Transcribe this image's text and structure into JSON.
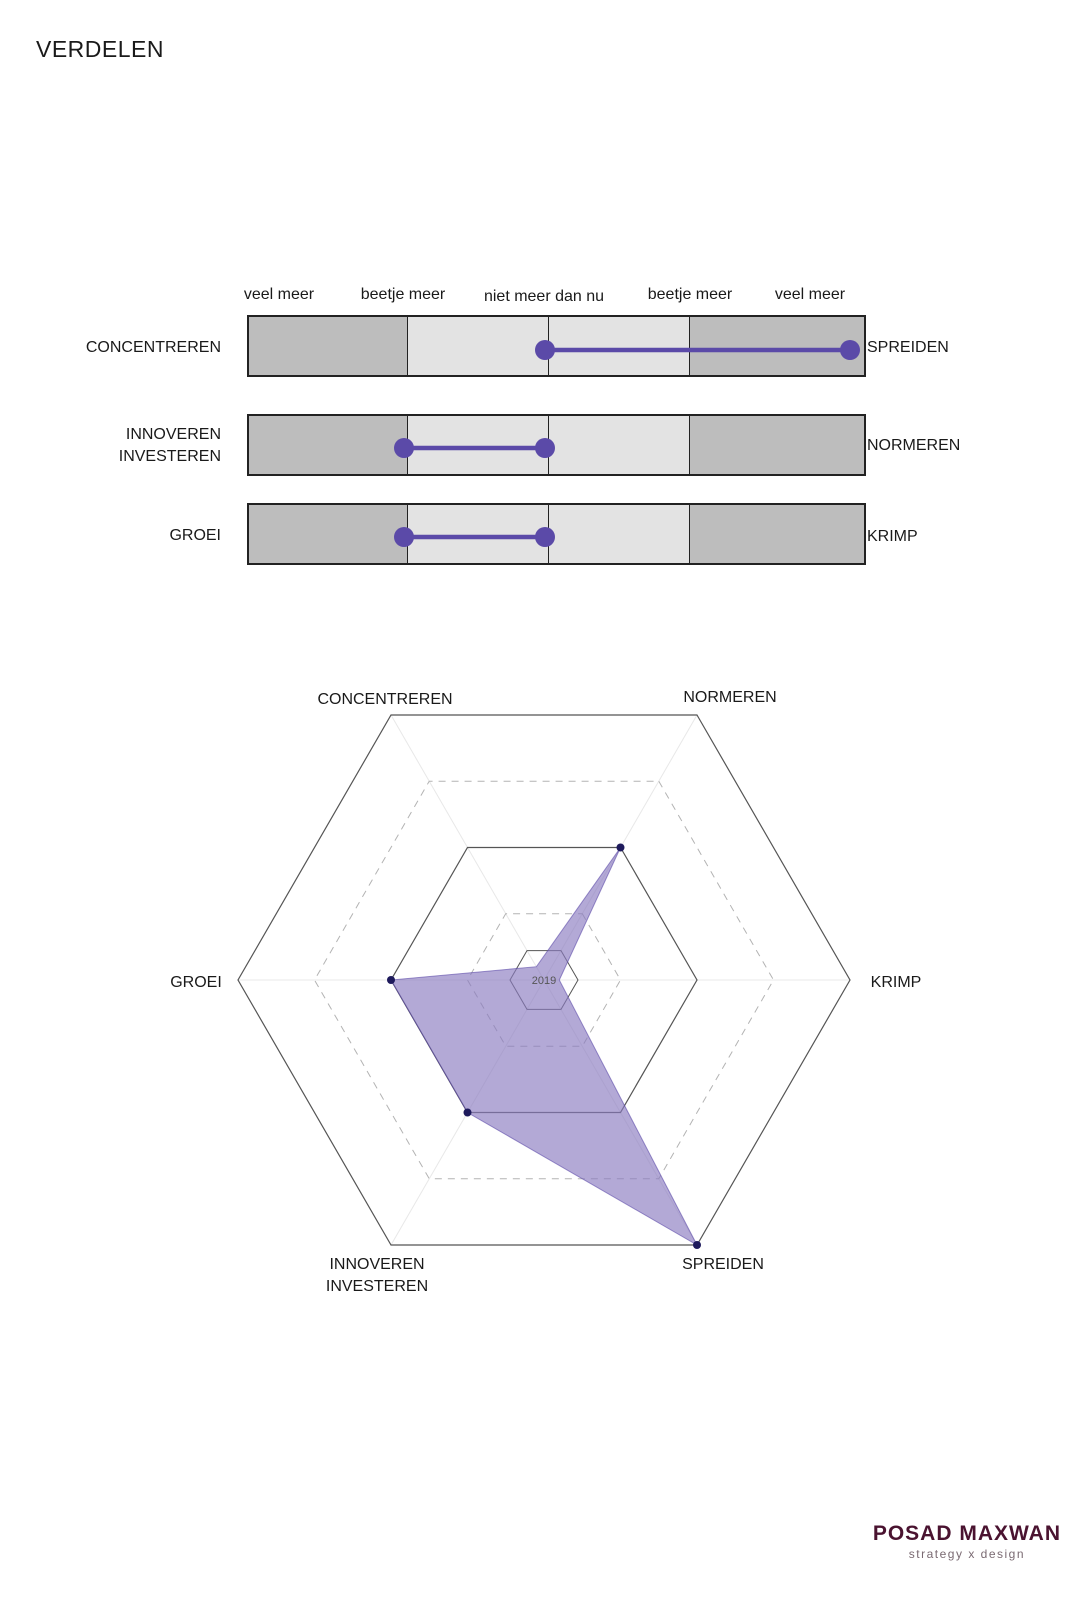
{
  "page_title": "VERDELEN",
  "scale_labels": [
    "veel meer",
    "beetje meer",
    "niet meer dan nu",
    "beetje meer",
    "veel meer"
  ],
  "colors": {
    "accent": "#5b4aa8",
    "radar_fill": "#8b7bc0",
    "segment_dark": "#bdbdbd",
    "segment_light": "#e3e3e3",
    "brand": "#4a1330"
  },
  "sliders": [
    {
      "left_label": [
        "CONCENTREREN"
      ],
      "right_label": "SPREIDEN",
      "range": [
        0,
        2
      ]
    },
    {
      "left_label": [
        "INNOVEREN",
        "INVESTEREN"
      ],
      "right_label": "NORMEREN",
      "range": [
        -1,
        0
      ]
    },
    {
      "left_label": [
        "GROEI"
      ],
      "right_label": "KRIMP",
      "range": [
        -1,
        0
      ]
    }
  ],
  "chart_data": {
    "type": "radar",
    "center_label": "2019",
    "axes": [
      "NORMEREN",
      "KRIMP",
      "SPREIDEN",
      "INNOVEREN INVESTEREN",
      "GROEI",
      "CONCENTREREN"
    ],
    "axis_label_lines": [
      [
        "NORMEREN"
      ],
      [
        "KRIMP"
      ],
      [
        "SPREIDEN"
      ],
      [
        "INNOVEREN",
        "INVESTEREN"
      ],
      [
        "GROEI"
      ],
      [
        "CONCENTREREN"
      ]
    ],
    "ring_levels": [
      0.25,
      0.5,
      0.75,
      1.0
    ],
    "series": [
      {
        "values": [
          0.5,
          0.05,
          1.0,
          0.5,
          0.5,
          0.05
        ]
      }
    ]
  },
  "brand": {
    "name": "POSAD MAXWAN",
    "tagline": "strategy x design"
  }
}
